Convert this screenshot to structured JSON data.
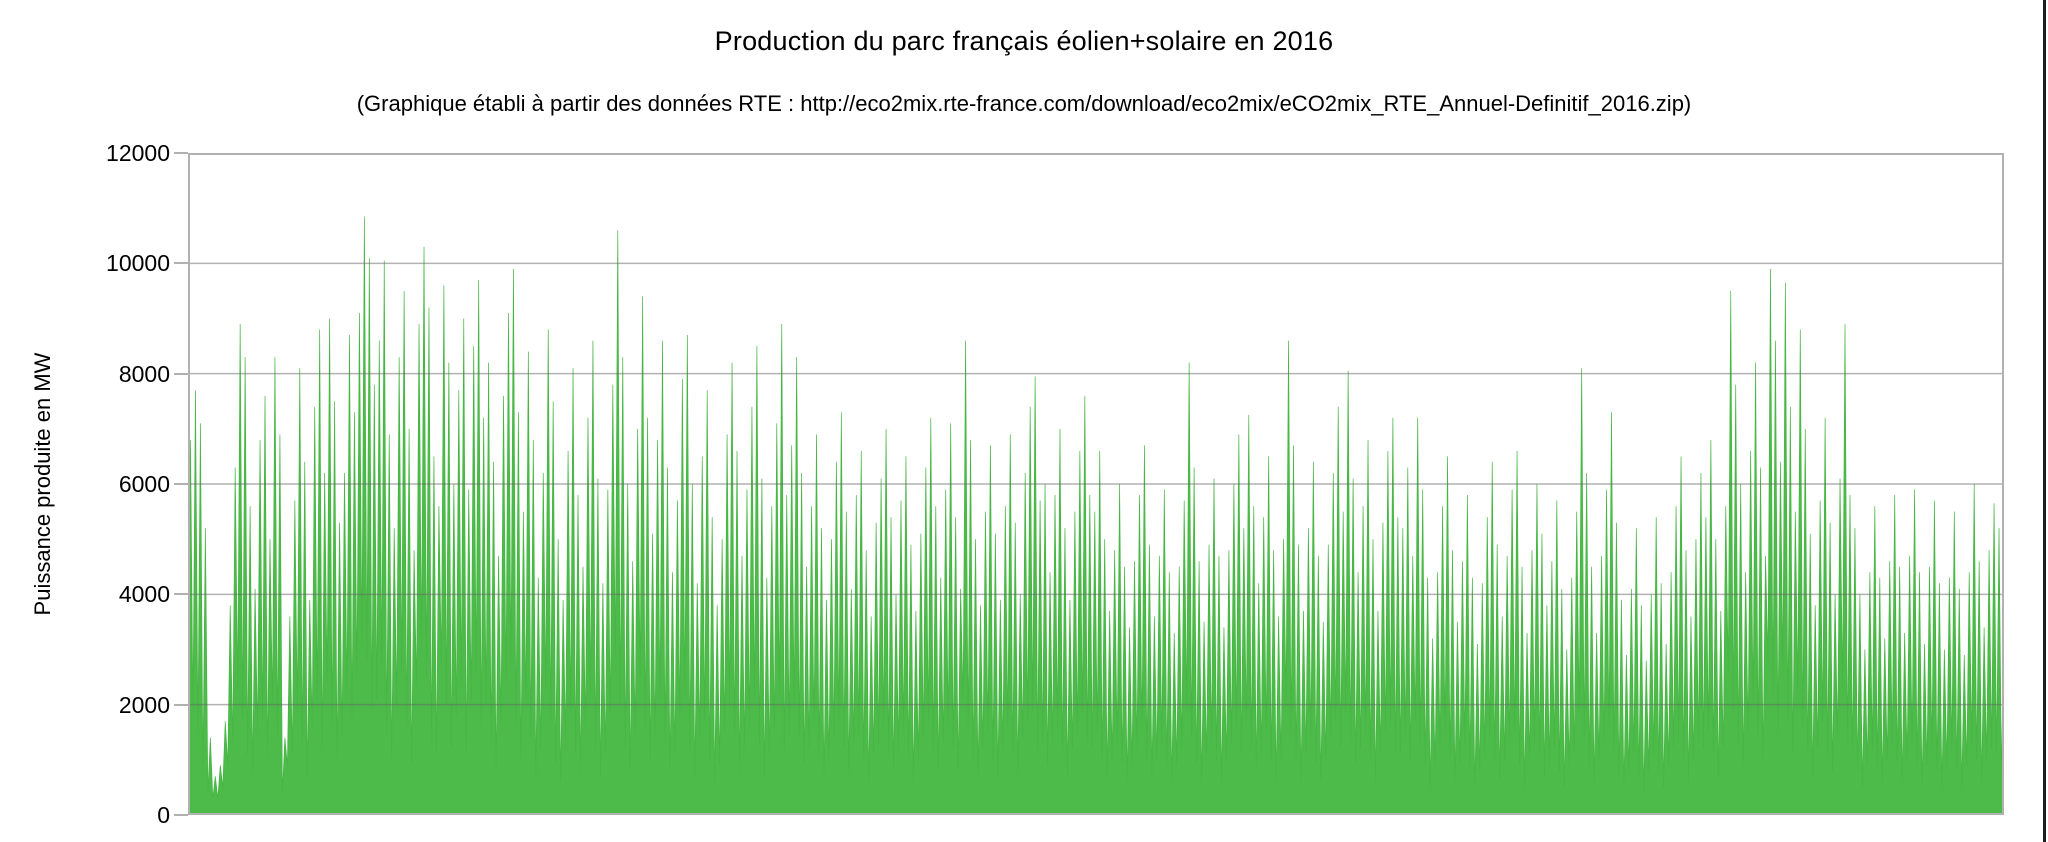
{
  "header": {
    "title": "Production du parc français éolien+solaire en 2016",
    "subtitle": "(Graphique établi à partir des données RTE : http://eco2mix.rte-france.com/download/eco2mix/eCO2mix_RTE_Annuel-Definitif_2016.zip)"
  },
  "colors": {
    "area_fill": "#4cbb49",
    "area_stroke": "#46b543",
    "gridline_over_plot": "rgba(102,102,102,0.5)",
    "axis_frame": "#b1b1b1",
    "text": "#000000",
    "window_edge": "#1c1c1c",
    "background": "#ffffff"
  },
  "chart_data": {
    "type": "area",
    "title": "Production du parc français éolien+solaire en 2016",
    "subtitle": "(Graphique établi à partir des données RTE : http://eco2mix.rte-france.com/download/eco2mix/eCO2mix_RTE_Annuel-Definitif_2016.zip)",
    "ylabel": "Puissance produite en MW",
    "xlabel": "",
    "unit": "MW",
    "ylim": [
      0,
      12000
    ],
    "yticks": [
      0,
      2000,
      4000,
      6000,
      8000,
      10000,
      12000
    ],
    "x_axis_labels": [],
    "grid": "horizontal",
    "legend": "none",
    "series_name": "éolien+solaire",
    "sampling_note": "Spiky sub-daily series covering the year 2016; values estimated from the plot as alternating (trough, peak) MW pairs, two per day, Jan 1 to Dec 31. Max peak ≈ 10850 MW in February; second ≈ 10600 MW late March; November storms ≈ 9900 MW.",
    "values": [
      1200,
      6800,
      1900,
      7700,
      1500,
      7100,
      800,
      5200,
      400,
      1400,
      300,
      700,
      300,
      900,
      500,
      1700,
      900,
      3800,
      1300,
      6300,
      2300,
      8900,
      1800,
      8300,
      1100,
      5600,
      800,
      4100,
      1500,
      6800,
      1700,
      7600,
      1000,
      5000,
      2000,
      8300,
      1400,
      6900,
      400,
      1400,
      900,
      3600,
      1100,
      5700,
      1900,
      8100,
      1300,
      6400,
      700,
      3900,
      1600,
      7400,
      2100,
      8800,
      1200,
      6200,
      2400,
      9000,
      1600,
      7500,
      1000,
      5300,
      1400,
      6200,
      2200,
      8700,
      1700,
      7300,
      2500,
      9100,
      3100,
      10850,
      2800,
      10100,
      1900,
      7800,
      2100,
      8600,
      2700,
      10050,
      1500,
      6900,
      1000,
      5200,
      2000,
      8300,
      2600,
      9500,
      1600,
      7000,
      900,
      4800,
      2300,
      8900,
      3000,
      10300,
      2500,
      9200,
      1300,
      6500,
      1100,
      5600,
      2700,
      9600,
      2000,
      8200,
      1200,
      6000,
      1800,
      7700,
      2400,
      9000,
      1100,
      5900,
      2100,
      8500,
      2600,
      9700,
      1600,
      7200,
      2000,
      8200,
      1300,
      6400,
      800,
      4700,
      1700,
      7600,
      2400,
      9100,
      2700,
      9900,
      1600,
      7300,
      1000,
      5500,
      2100,
      8400,
      1400,
      6800,
      700,
      4300,
      1200,
      6200,
      2300,
      8800,
      1700,
      7500,
      900,
      5000,
      600,
      3900,
      1400,
      6600,
      1900,
      8100,
      1100,
      5800,
      800,
      4500,
      1600,
      7200,
      2200,
      8600,
      1200,
      6100,
      700,
      4200,
      1100,
      5900,
      1800,
      7800,
      2900,
      10600,
      2000,
      8300,
      1200,
      6000,
      800,
      4600,
      1500,
      7000,
      2500,
      9400,
      1600,
      7200,
      1000,
      5100,
      1400,
      6800,
      2100,
      8600,
      1300,
      6300,
      800,
      4400,
      1100,
      5700,
      1800,
      7900,
      2200,
      8700,
      1200,
      6000,
      700,
      4200,
      1400,
      6500,
      1700,
      7700,
      1000,
      5400,
      600,
      3800,
      900,
      5000,
      1500,
      6900,
      2000,
      8200,
      1400,
      6600,
      800,
      4700,
      1200,
      5900,
      1600,
      7400,
      2100,
      8500,
      1300,
      6100,
      700,
      4300,
      1100,
      5600,
      1500,
      7100,
      2200,
      8900,
      1100,
      5800,
      1500,
      6700,
      2000,
      8300,
      1400,
      6200,
      900,
      4500,
      1200,
      5600,
      1600,
      6900,
      1100,
      5200,
      700,
      3900,
      1000,
      5000,
      1400,
      6400,
      1700,
      7300,
      1200,
      5500,
      800,
      4100,
      1300,
      5800,
      1500,
      6600,
      1000,
      4800,
      600,
      3600,
      1100,
      5300,
      1300,
      6100,
      1600,
      7000,
      1100,
      5400,
      800,
      4000,
      1200,
      5700,
      1500,
      6500,
      1000,
      4900,
      600,
      3700,
      1000,
      5100,
      1400,
      6300,
      1700,
      7200,
      1200,
      5600,
      800,
      4300,
      1300,
      5900,
      1600,
      7100,
      1200,
      5400,
      800,
      4100,
      2100,
      8600,
      1500,
      6800,
      1000,
      5000,
      700,
      3800,
      1200,
      5500,
      1500,
      6700,
      1000,
      5100,
      700,
      3900,
      1200,
      5600,
      1600,
      6900,
      1100,
      5300,
      800,
      4000,
      1400,
      6200,
      1700,
      7400,
      1900,
      7950,
      1200,
      5700,
      1300,
      6000,
      900,
      4400,
      1300,
      5800,
      1600,
      7000,
      1100,
      5200,
      700,
      3900,
      1200,
      5500,
      1500,
      6600,
      1800,
      7600,
      1300,
      5800,
      1200,
      5500,
      1500,
      6600,
      1000,
      5000,
      700,
      3700,
      1000,
      4800,
      1300,
      6000,
      900,
      4500,
      600,
      3400,
      900,
      4600,
      1200,
      5800,
      1500,
      6700,
      1000,
      4900,
      700,
      3600,
      1000,
      4700,
      1300,
      5900,
      900,
      4400,
      600,
      3300,
      900,
      4500,
      1200,
      5700,
      2000,
      8200,
      1400,
      6300,
      900,
      4600,
      600,
      3500,
      1000,
      4900,
      1300,
      6100,
      1000,
      4700,
      600,
      3400,
      1000,
      4800,
      1300,
      6000,
      1600,
      6900,
      1100,
      5200,
      1700,
      7250,
      1200,
      5600,
      800,
      4200,
      1100,
      5400,
      1500,
      6500,
      1000,
      4800,
      600,
      3600,
      1000,
      5000,
      2100,
      8600,
      1500,
      6700,
      1000,
      4900,
      600,
      3700,
      1100,
      5200,
      1400,
      6400,
      900,
      4700,
      600,
      3500,
      1000,
      4900,
      1400,
      6200,
      1700,
      7400,
      1200,
      5500,
      1900,
      8050,
      1300,
      6100,
      900,
      4400,
      1200,
      5600,
      1500,
      6800,
      1000,
      5000,
      600,
      3700,
      1100,
      5300,
      1500,
      6600,
      1700,
      7200,
      1100,
      5400,
      1100,
      5200,
      1400,
      6300,
      1000,
      4700,
      1700,
      7200,
      1300,
      5900,
      900,
      4300,
      500,
      3200,
      900,
      4400,
      1200,
      5600,
      1500,
      6500,
      1000,
      4800,
      600,
      3500,
      900,
      4600,
      1300,
      5800,
      900,
      4300,
      500,
      3100,
      800,
      4200,
      1100,
      5400,
      1400,
      6400,
      1000,
      4900,
      600,
      3600,
      1000,
      4700,
      1300,
      5900,
      1500,
      6600,
      900,
      4500,
      500,
      3300,
      1000,
      4800,
      1300,
      6000,
      1100,
      5100,
      700,
      3800,
      900,
      4600,
      1200,
      5700,
      800,
      4100,
      500,
      3000,
      900,
      4300,
      1100,
      5500,
      1900,
      8100,
      1400,
      6200,
      900,
      4500,
      600,
      3300,
      1000,
      4700,
      1300,
      5900,
      1600,
      7300,
      1100,
      5300,
      700,
      3900,
      500,
      2900,
      800,
      4100,
      1100,
      5200,
      700,
      3800,
      400,
      2800,
      800,
      4000,
      1100,
      5400,
      800,
      4200,
      500,
      3100,
      900,
      4400,
      1200,
      5600,
      1400,
      6500,
      1000,
      4800,
      600,
      3600,
      1000,
      5000,
      1300,
      6200,
      1200,
      5400,
      1500,
      6800,
      1100,
      5000,
      700,
      3700,
      1200,
      5600,
      2600,
      9500,
      1900,
      7800,
      1300,
      6000,
      900,
      4400,
      1500,
      6600,
      2000,
      8200,
      1400,
      6300,
      1000,
      4700,
      2800,
      9900,
      2200,
      8600,
      1500,
      6400,
      2700,
      9650,
      1700,
      7400,
      1100,
      5500,
      2300,
      8800,
      1600,
      7000,
      1100,
      5100,
      700,
      3800,
      1200,
      5700,
      1700,
      7200,
      1100,
      5300,
      800,
      4000,
      1400,
      6100,
      2300,
      8900,
      1300,
      5800,
      1100,
      5200,
      800,
      4000,
      500,
      3000,
      900,
      4400,
      1200,
      5600,
      900,
      4300,
      600,
      3200,
      1000,
      4600,
      1300,
      5800,
      900,
      4500,
      600,
      3300,
      1000,
      4700,
      1300,
      5900,
      900,
      4400,
      500,
      3100,
      900,
      4500,
      1200,
      5700,
      800,
      4200,
      500,
      3000,
      900,
      4300,
      1200,
      5500,
      800,
      4100,
      500,
      2900,
      900,
      4400,
      1300,
      6000,
      1000,
      4600,
      600,
      3400,
      1000,
      4800,
      1200,
      5650,
      1100,
      5200,
      700,
      3800
    ]
  }
}
